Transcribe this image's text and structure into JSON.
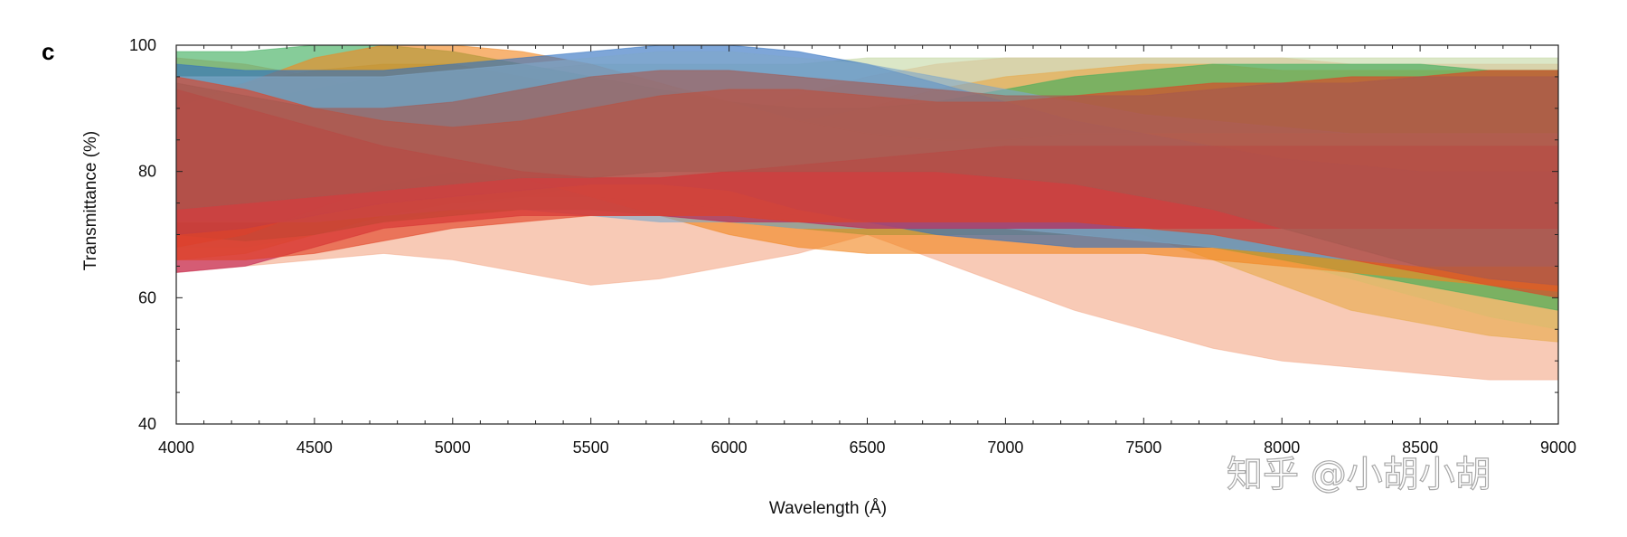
{
  "chart_data": {
    "type": "area",
    "panel_label": "c",
    "xlabel": "Wavelength (Å)",
    "ylabel": "Transmittance (%)",
    "xlim": [
      4000,
      9000
    ],
    "ylim": [
      40,
      100
    ],
    "x_ticks": [
      4000,
      4500,
      5000,
      5500,
      6000,
      6500,
      7000,
      7500,
      8000,
      8500,
      9000
    ],
    "x_tick_labels": [
      "4000",
      "4500",
      "5000",
      "5500",
      "6000",
      "6500",
      "7000",
      "7500",
      "8000",
      "8500",
      "9000"
    ],
    "y_ticks": [
      40,
      60,
      80,
      100
    ],
    "y_tick_labels": [
      "40",
      "60",
      "80",
      "100"
    ],
    "grid": false,
    "legend": "none",
    "x": [
      4000,
      4250,
      4500,
      4750,
      5000,
      5250,
      5500,
      5750,
      6000,
      6250,
      6500,
      6750,
      7000,
      7250,
      7500,
      7750,
      8000,
      8250,
      8500,
      8750,
      9000
    ],
    "series": [
      {
        "color": "#f4a989",
        "upper": [
          98,
          97,
          95,
          92,
          88,
          86,
          85,
          86,
          88,
          92,
          95,
          97,
          98,
          98,
          98,
          98,
          98,
          97,
          97,
          97,
          97
        ],
        "lower": [
          64,
          65,
          66,
          67,
          66,
          64,
          62,
          63,
          65,
          67,
          70,
          66,
          62,
          58,
          55,
          52,
          50,
          49,
          48,
          47,
          47
        ]
      },
      {
        "color": "#c5d8a4",
        "upper": [
          90,
          91,
          93,
          95,
          96,
          96,
          97,
          97,
          97,
          97,
          98,
          98,
          98,
          98,
          98,
          98,
          98,
          98,
          98,
          98,
          98
        ],
        "lower": [
          68,
          68,
          70,
          72,
          74,
          76,
          78,
          78,
          79,
          78,
          76,
          74,
          73,
          72,
          70,
          68,
          66,
          63,
          60,
          57,
          55
        ]
      },
      {
        "color": "#e8a94a",
        "upper": [
          92,
          94,
          96,
          97,
          97,
          95,
          93,
          91,
          89,
          88,
          90,
          93,
          95,
          96,
          97,
          97,
          96,
          96,
          96,
          96,
          96
        ],
        "lower": [
          66,
          67,
          70,
          73,
          75,
          76,
          76,
          75,
          74,
          73,
          73,
          74,
          75,
          73,
          70,
          66,
          62,
          58,
          56,
          54,
          53
        ]
      },
      {
        "color": "#3cad5b",
        "upper": [
          99,
          99,
          100,
          100,
          99,
          97,
          95,
          93,
          91,
          90,
          90,
          91,
          93,
          95,
          96,
          97,
          97,
          97,
          97,
          96,
          96
        ],
        "lower": [
          70,
          69,
          70,
          72,
          73,
          74,
          74,
          73,
          72,
          71,
          70,
          70,
          70,
          70,
          69,
          68,
          66,
          64,
          62,
          60,
          58
        ]
      },
      {
        "color": "#f2861f",
        "upper": [
          90,
          94,
          98,
          100,
          100,
          99,
          97,
          94,
          91,
          88,
          86,
          85,
          85,
          86,
          86,
          86,
          86,
          86,
          86,
          86,
          86
        ],
        "lower": [
          68,
          70,
          74,
          78,
          80,
          79,
          76,
          73,
          70,
          68,
          67,
          67,
          67,
          67,
          67,
          66,
          65,
          64,
          63,
          62,
          61
        ]
      },
      {
        "color": "#2f6fc0",
        "upper": [
          97,
          96,
          96,
          96,
          97,
          98,
          99,
          100,
          100,
          99,
          97,
          94,
          91,
          88,
          86,
          84,
          82,
          81,
          80,
          80,
          80
        ],
        "lower": [
          70,
          71,
          73,
          75,
          76,
          77,
          78,
          78,
          77,
          74,
          72,
          70,
          69,
          68,
          68,
          68,
          67,
          66,
          65,
          65,
          65
        ]
      },
      {
        "color": "#7fa8c9",
        "upper": [
          95,
          95,
          95,
          95,
          96,
          97,
          98,
          99,
          99,
          98,
          97,
          95,
          93,
          91,
          89,
          88,
          87,
          86,
          86,
          86,
          86
        ],
        "lower": [
          72,
          72,
          72,
          73,
          74,
          74,
          73,
          72,
          72,
          71,
          71,
          71,
          71,
          70,
          69,
          68,
          67,
          66,
          65,
          65,
          65
        ]
      },
      {
        "color": "#c0194c",
        "upper": [
          93,
          90,
          87,
          84,
          82,
          80,
          79,
          79,
          80,
          81,
          82,
          83,
          84,
          84,
          84,
          84,
          84,
          84,
          84,
          84,
          84
        ],
        "lower": [
          64,
          65,
          68,
          71,
          72,
          73,
          73,
          73,
          72,
          72,
          71,
          71,
          71,
          71,
          71,
          71,
          71,
          71,
          71,
          71,
          71
        ]
      },
      {
        "color": "#e23f22",
        "upper": [
          95,
          93,
          90,
          88,
          87,
          88,
          90,
          92,
          93,
          93,
          92,
          91,
          91,
          92,
          93,
          94,
          94,
          95,
          95,
          96,
          96
        ],
        "lower": [
          66,
          66,
          67,
          69,
          71,
          72,
          73,
          73,
          73,
          72,
          72,
          72,
          72,
          72,
          71,
          70,
          68,
          66,
          64,
          62,
          60
        ]
      },
      {
        "color": "#a5584f",
        "upper": [
          94,
          92,
          90,
          90,
          91,
          93,
          95,
          96,
          96,
          95,
          94,
          93,
          92,
          92,
          92,
          93,
          94,
          94,
          95,
          95,
          95
        ],
        "lower": [
          74,
          75,
          76,
          77,
          78,
          79,
          79,
          80,
          80,
          80,
          80,
          80,
          79,
          78,
          76,
          74,
          71,
          68,
          65,
          63,
          62
        ]
      }
    ]
  },
  "watermark": {
    "text": "知乎 @小胡小胡"
  }
}
